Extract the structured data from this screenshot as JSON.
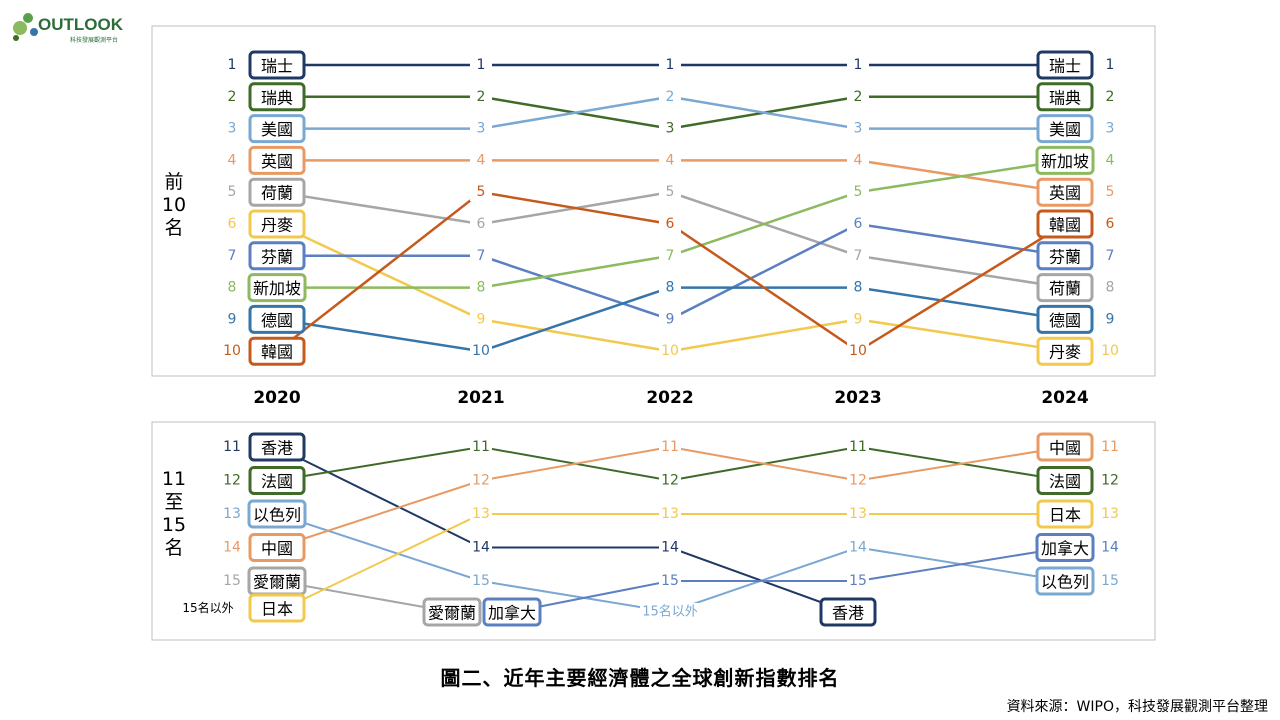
{
  "logo": {
    "text": "OUTLOOK",
    "subtext": "科技發展觀測平台"
  },
  "caption": "圖二、近年主要經濟體之全球創新指數排名",
  "source": "資料來源：WIPO，科技發展觀測平台整理",
  "colors": {
    "瑞士": "#1f3864",
    "瑞典": "#3f6a28",
    "美國": "#7aa8d2",
    "英國": "#e89a64",
    "荷蘭": "#a6a6a6",
    "丹麥": "#f2c94c",
    "芬蘭": "#5b7fc0",
    "新加坡": "#8cba5e",
    "德國": "#3575a9",
    "韓國": "#c55a1c",
    "香港": "#1f3864",
    "法國": "#3f6a28",
    "以色列": "#7aa8d2",
    "中國": "#e89a64",
    "愛爾蘭": "#a6a6a6",
    "日本": "#f2c94c",
    "加拿大": "#5b7fc0"
  },
  "chart_data": [
    {
      "type": "line",
      "panel_label": "前\n10\n名",
      "x": [
        "2020",
        "2021",
        "2022",
        "2023",
        "2024"
      ],
      "series": [
        {
          "name": "瑞士",
          "values": [
            1,
            1,
            1,
            1,
            1
          ]
        },
        {
          "name": "瑞典",
          "values": [
            2,
            2,
            3,
            2,
            2
          ]
        },
        {
          "name": "美國",
          "values": [
            3,
            3,
            2,
            3,
            3
          ]
        },
        {
          "name": "英國",
          "values": [
            4,
            4,
            4,
            4,
            5
          ]
        },
        {
          "name": "荷蘭",
          "values": [
            5,
            6,
            5,
            7,
            8
          ]
        },
        {
          "name": "丹麥",
          "values": [
            6,
            9,
            10,
            9,
            10
          ]
        },
        {
          "name": "芬蘭",
          "values": [
            7,
            7,
            9,
            6,
            7
          ]
        },
        {
          "name": "新加坡",
          "values": [
            8,
            8,
            7,
            5,
            4
          ]
        },
        {
          "name": "德國",
          "values": [
            9,
            10,
            8,
            8,
            9
          ]
        },
        {
          "name": "韓國",
          "values": [
            10,
            5,
            6,
            10,
            6
          ]
        }
      ],
      "y_reversed": true,
      "ylim": [
        1,
        10
      ]
    },
    {
      "type": "line",
      "panel_label": "11\n至\n15\n名",
      "x": [
        "2020",
        "2021",
        "2022",
        "2023",
        "2024"
      ],
      "outside_label": "15名以外",
      "series": [
        {
          "name": "香港",
          "values": [
            11,
            14,
            14,
            "15名以外",
            null
          ]
        },
        {
          "name": "法國",
          "values": [
            12,
            11,
            12,
            11,
            12
          ]
        },
        {
          "name": "以色列",
          "values": [
            13,
            15,
            "15名以外",
            14,
            15
          ]
        },
        {
          "name": "中國",
          "values": [
            14,
            12,
            11,
            12,
            11
          ]
        },
        {
          "name": "愛爾蘭",
          "values": [
            15,
            "15名以外",
            null,
            null,
            null
          ]
        },
        {
          "name": "日本",
          "values": [
            "15名以外",
            13,
            13,
            13,
            13
          ]
        },
        {
          "name": "加拿大",
          "values": [
            null,
            "15名以外",
            15,
            15,
            14
          ]
        }
      ],
      "y_reversed": true,
      "ylim": [
        11,
        15
      ]
    }
  ]
}
